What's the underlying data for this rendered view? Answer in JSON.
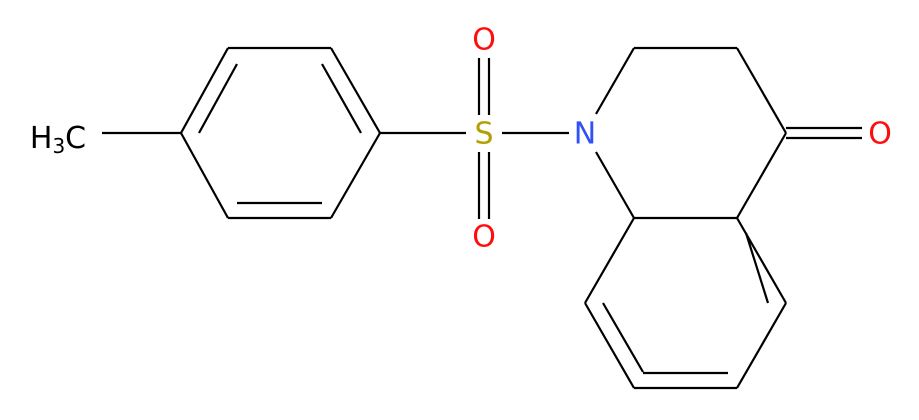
{
  "methyl": [
    "H",
    "3",
    "C"
  ],
  "atoms": [
    "S",
    "O",
    "O",
    "N",
    "O"
  ]
}
